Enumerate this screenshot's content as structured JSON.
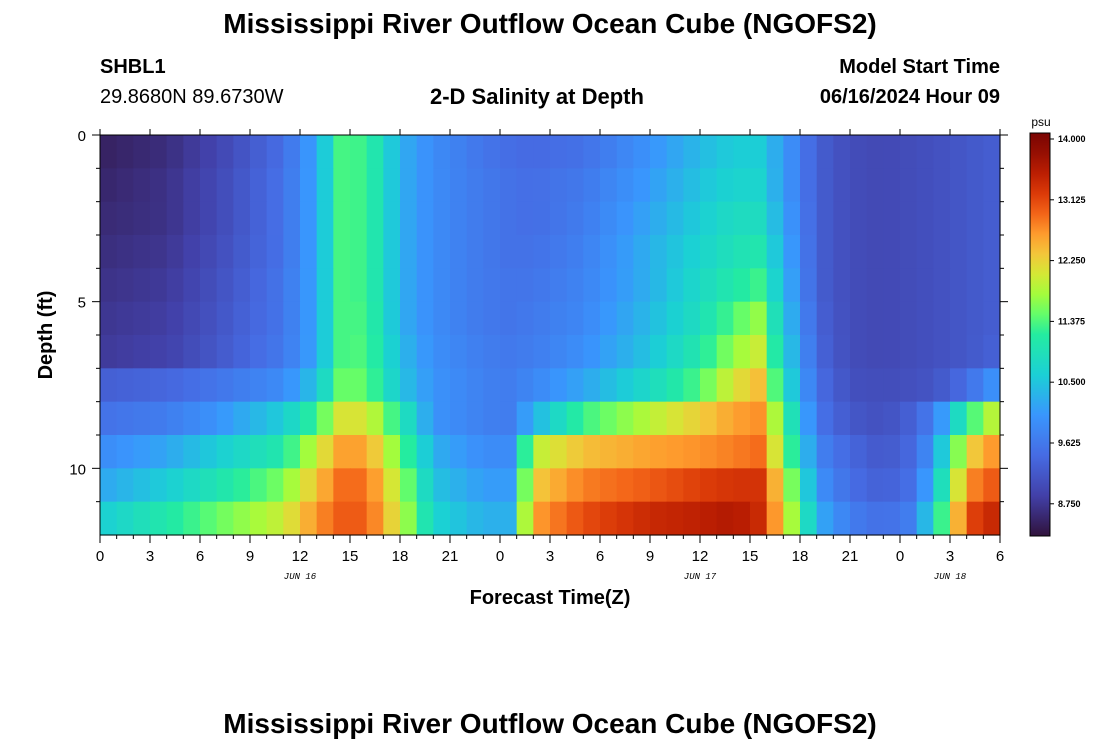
{
  "page": {
    "title": "Mississippi River Outflow Ocean Cube (NGOFS2)",
    "title_repeat": "Mississippi River Outflow Ocean Cube (NGOFS2)",
    "station_id": "SHBL1",
    "station_coords": "29.8680N  89.6730W",
    "plot_subtitle": "2-D Salinity at Depth",
    "model_start_label": "Model Start Time",
    "model_start_value": "06/16/2024 Hour 09"
  },
  "chart_data": {
    "type": "heatmap",
    "title": "2-D Salinity at Depth",
    "xlabel": "Forecast Time(Z)",
    "ylabel": "Depth (ft)",
    "x_hours": [
      0,
      54
    ],
    "ylim": [
      0,
      12
    ],
    "y_inverted": true,
    "x_tick_values": [
      0,
      3,
      6,
      9,
      12,
      15,
      18,
      21,
      24,
      27,
      30,
      33,
      36,
      39,
      42,
      45,
      48,
      51,
      54
    ],
    "x_tick_labels": [
      "0",
      "3",
      "6",
      "9",
      "12",
      "15",
      "18",
      "21",
      "0",
      "3",
      "6",
      "9",
      "12",
      "15",
      "18",
      "21",
      "0",
      "3",
      "6"
    ],
    "y_ticks": [
      0,
      5,
      10
    ],
    "y_tick_labels": [
      "0",
      "5",
      "10"
    ],
    "date_labels": [
      {
        "hour": 12,
        "label": "JUN 16"
      },
      {
        "hour": 36,
        "label": "JUN 17"
      },
      {
        "hour": 51,
        "label": "JUN 18"
      }
    ],
    "depth_levels_ft": [
      0.5,
      1.5,
      2.5,
      3.5,
      4.5,
      5.5,
      6.5,
      7.5,
      8.5,
      9.5,
      10.5,
      11.5
    ],
    "time_keys_hours": [
      0,
      4,
      7,
      11,
      13,
      14.5,
      16,
      18,
      20,
      23,
      24.5,
      26,
      29,
      33,
      36,
      38,
      39.5,
      41,
      43,
      45,
      47,
      48.5,
      50,
      52,
      54
    ],
    "salinity_psu": [
      [
        8.4,
        8.55,
        8.85,
        9.4,
        10.1,
        11.25,
        11.2,
        10.2,
        9.8,
        9.5,
        9.4,
        9.35,
        9.45,
        9.9,
        10.3,
        10.5,
        10.5,
        10.0,
        9.2,
        8.95,
        8.9,
        8.95,
        9.0,
        9.1,
        9.2
      ],
      [
        8.45,
        8.6,
        8.9,
        9.45,
        10.1,
        11.25,
        11.2,
        10.2,
        9.8,
        9.55,
        9.45,
        9.4,
        9.55,
        10.0,
        10.4,
        10.6,
        10.6,
        10.0,
        9.2,
        8.95,
        8.9,
        8.95,
        9.0,
        9.1,
        9.2
      ],
      [
        8.5,
        8.6,
        8.9,
        9.45,
        10.1,
        11.25,
        11.2,
        10.2,
        9.8,
        9.55,
        9.45,
        9.4,
        9.6,
        10.1,
        10.5,
        10.75,
        10.75,
        10.1,
        9.2,
        8.95,
        8.9,
        8.95,
        9.0,
        9.1,
        9.2
      ],
      [
        8.55,
        8.65,
        8.95,
        9.45,
        10.1,
        11.25,
        11.2,
        10.2,
        9.8,
        9.55,
        9.45,
        9.45,
        9.65,
        10.2,
        10.6,
        10.85,
        10.95,
        10.2,
        9.2,
        8.95,
        8.9,
        8.95,
        9.0,
        9.1,
        9.2
      ],
      [
        8.6,
        8.7,
        9.0,
        9.5,
        10.1,
        11.25,
        11.2,
        10.2,
        9.8,
        9.55,
        9.5,
        9.5,
        9.7,
        10.2,
        10.7,
        11.0,
        11.2,
        10.3,
        9.2,
        8.95,
        8.9,
        8.95,
        9.0,
        9.1,
        9.2
      ],
      [
        8.65,
        8.75,
        9.05,
        9.5,
        10.1,
        11.25,
        11.25,
        10.2,
        9.8,
        9.55,
        9.5,
        9.55,
        9.75,
        10.3,
        10.8,
        11.3,
        11.6,
        10.45,
        9.25,
        8.95,
        8.9,
        8.95,
        9.0,
        9.1,
        9.2
      ],
      [
        8.7,
        8.8,
        9.1,
        9.55,
        10.1,
        11.25,
        11.3,
        10.3,
        9.85,
        9.6,
        9.55,
        9.6,
        9.85,
        10.4,
        11.0,
        11.6,
        11.9,
        10.6,
        9.3,
        8.95,
        8.9,
        8.95,
        9.0,
        9.1,
        9.25
      ],
      [
        9.2,
        9.3,
        9.5,
        9.8,
        10.4,
        11.4,
        11.4,
        10.4,
        9.9,
        9.65,
        9.6,
        9.75,
        10.1,
        10.7,
        11.3,
        12.0,
        12.3,
        10.8,
        9.4,
        9.0,
        8.95,
        9.0,
        9.05,
        9.4,
        10.0
      ],
      [
        9.45,
        9.6,
        9.9,
        10.5,
        11.2,
        12.0,
        12.0,
        11.0,
        9.9,
        9.65,
        9.6,
        10.2,
        11.2,
        11.8,
        12.2,
        12.5,
        12.6,
        11.3,
        9.5,
        9.1,
        9.0,
        9.2,
        9.6,
        11.1,
        12.0
      ],
      [
        9.8,
        10.1,
        10.5,
        11.0,
        11.9,
        12.5,
        12.5,
        11.4,
        10.2,
        9.8,
        9.8,
        11.8,
        12.3,
        12.5,
        12.6,
        12.7,
        12.8,
        11.6,
        9.7,
        9.3,
        9.1,
        9.3,
        9.9,
        12.1,
        12.7
      ],
      [
        10.1,
        10.5,
        10.9,
        11.5,
        12.3,
        12.8,
        12.8,
        11.7,
        10.4,
        10.0,
        10.0,
        12.2,
        12.7,
        12.9,
        13.1,
        13.2,
        13.2,
        12.0,
        9.9,
        9.4,
        9.2,
        9.4,
        10.2,
        12.6,
        13.0
      ],
      [
        10.5,
        11.0,
        11.4,
        11.9,
        12.6,
        12.9,
        12.9,
        11.9,
        10.6,
        10.2,
        10.2,
        12.5,
        13.0,
        13.3,
        13.4,
        13.5,
        13.3,
        12.2,
        10.2,
        9.6,
        9.4,
        9.6,
        10.6,
        13.0,
        13.4
      ]
    ],
    "colorbar": {
      "unit": "psu",
      "min": 8.2,
      "max": 14.0,
      "tick_values": [
        14.0,
        13.125,
        12.25,
        11.375,
        10.5,
        9.625,
        8.75
      ],
      "tick_labels": [
        "14.000",
        "13.125",
        "12.250",
        "11.375",
        "10.500",
        "9.625",
        "8.750"
      ]
    }
  }
}
